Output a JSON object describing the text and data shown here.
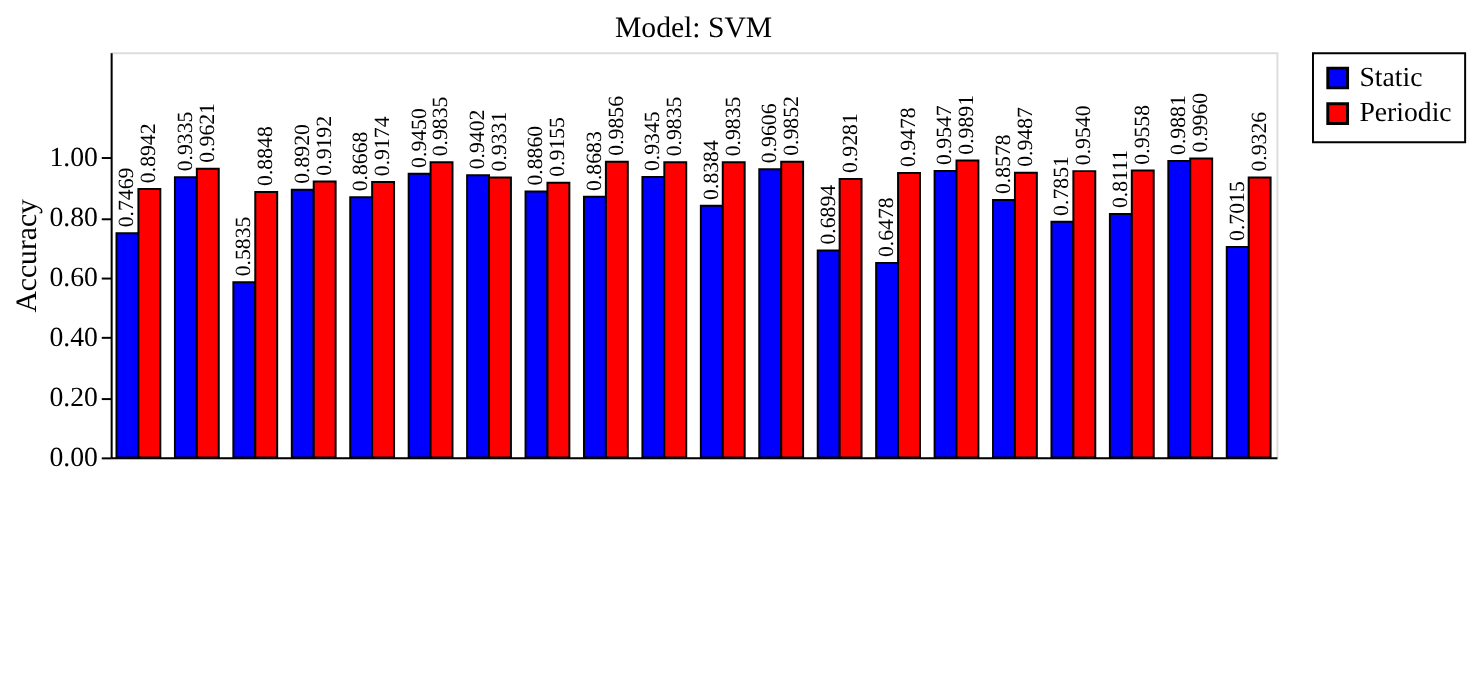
{
  "chart_data": {
    "type": "bar",
    "title": "Model: SVM",
    "ylabel": "Accuracy",
    "categories": [
      null,
      null,
      null,
      null,
      null,
      null,
      null,
      null,
      null,
      null,
      null,
      null,
      null,
      null,
      null,
      null,
      null,
      null,
      null,
      null
    ],
    "series": [
      {
        "name": "Static",
        "color": "#0000ff",
        "values": [
          0.7469,
          0.9335,
          0.5835,
          0.892,
          0.8668,
          0.945,
          0.9402,
          0.886,
          0.8683,
          0.9345,
          0.8384,
          0.9606,
          0.6894,
          0.6478,
          0.9547,
          0.8578,
          0.7851,
          0.8111,
          0.9881,
          0.7015
        ],
        "value_labels": [
          "0.7469",
          "0.9335",
          "0.5835",
          "0.8920",
          "0.8668",
          "0.9450",
          "0.9402",
          "0.8860",
          "0.8683",
          "0.9345",
          "0.8384",
          "0.9606",
          "0.6894",
          "0.6478",
          "0.9547",
          "0.8578",
          "0.7851",
          "0.8111",
          "0.9881",
          "0.7015"
        ]
      },
      {
        "name": "Periodic",
        "color": "#ff0000",
        "values": [
          0.8942,
          0.9621,
          0.8848,
          0.9192,
          0.9174,
          0.9835,
          0.9331,
          0.9155,
          0.9856,
          0.9835,
          0.9835,
          0.9852,
          0.9281,
          0.9478,
          0.9891,
          0.9487,
          0.954,
          0.9558,
          0.996,
          0.9326
        ],
        "value_labels": [
          "0.8942",
          "0.9621",
          "0.8848",
          "0.9192",
          "0.9174",
          "0.9835",
          "0.9331",
          "0.9155",
          "0.9856",
          "0.9835",
          "0.9835",
          "0.9852",
          "0.9281",
          "0.9478",
          "0.9891",
          "0.9487",
          "0.9540",
          "0.9558",
          "0.9960",
          "0.9326"
        ]
      }
    ],
    "ylim": [
      0,
      1.35
    ],
    "yticks": [
      {
        "value": 0,
        "label": "0.00"
      },
      {
        "value": 0.2,
        "label": "0.20"
      },
      {
        "value": 0.4,
        "label": "0.40"
      },
      {
        "value": 0.6,
        "label": "0.60"
      },
      {
        "value": 0.8,
        "label": "0.80"
      },
      {
        "value": 1.0,
        "label": "1.00"
      }
    ],
    "grid": false,
    "legend": "right",
    "tick_labels": "y"
  }
}
